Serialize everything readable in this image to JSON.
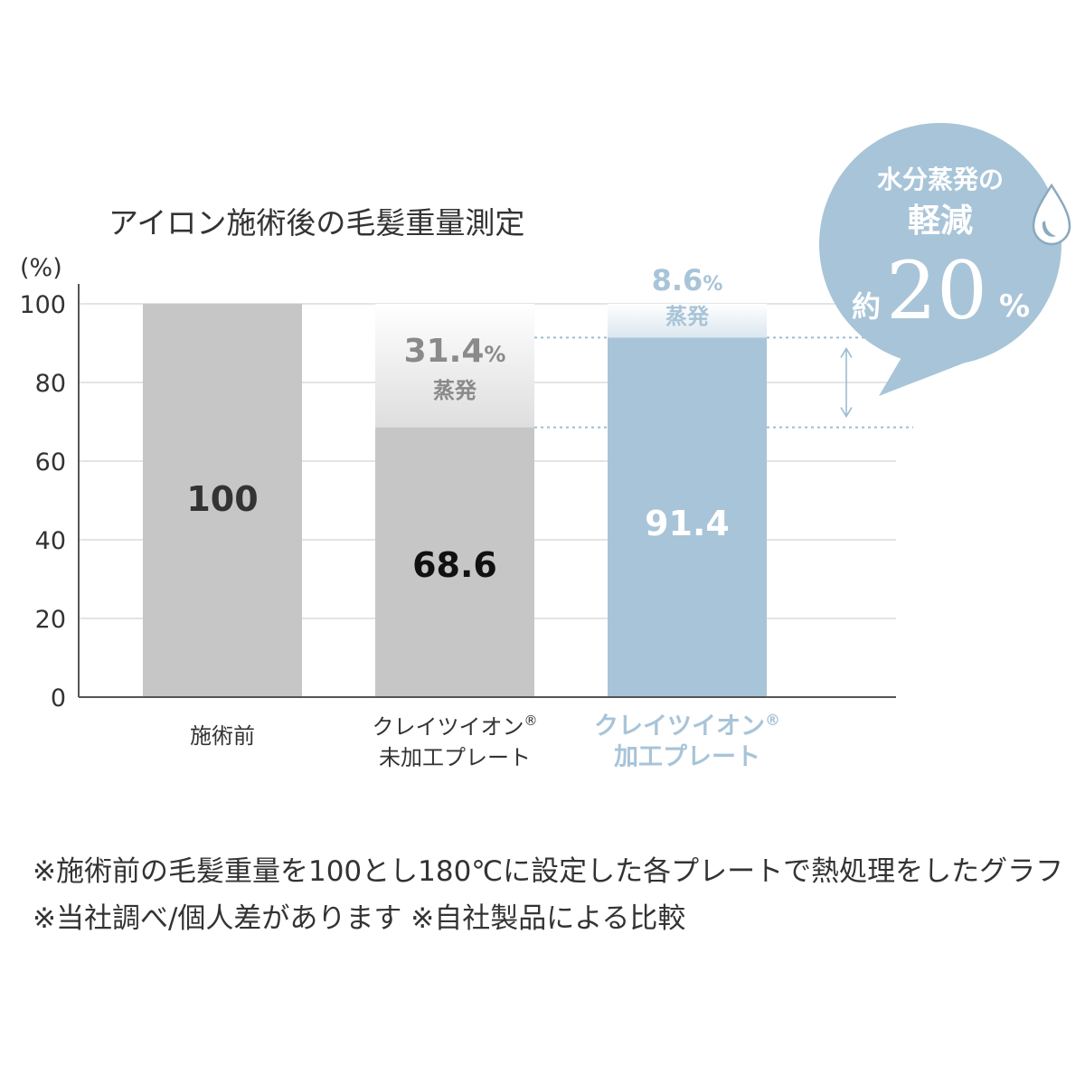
{
  "chart_data": {
    "type": "bar",
    "title": "アイロン施術後の毛髪重量測定",
    "ylabel": "(%)",
    "ylim": [
      0,
      100
    ],
    "yticks": [
      "0",
      "20",
      "40",
      "60",
      "80",
      "100"
    ],
    "grid": true,
    "categories": [
      {
        "lines": [
          "施術前"
        ],
        "sup": "",
        "highlight": false
      },
      {
        "lines": [
          "クレイツイオン",
          "未加工プレート"
        ],
        "sup": "®",
        "highlight": false
      },
      {
        "lines": [
          "クレイツイオン",
          "加工プレート"
        ],
        "sup": "®",
        "highlight": true
      }
    ],
    "series": [
      {
        "name": "",
        "values": [
          100,
          68.6,
          91.4
        ]
      }
    ],
    "value_labels": [
      "100",
      "68.6",
      "91.4"
    ],
    "evaporation": [
      null,
      {
        "number": "31.4",
        "unit": "%",
        "label": "蒸発",
        "value": 31.4
      },
      {
        "number": "8.6",
        "unit": "%",
        "label": "蒸発",
        "value": 8.6
      }
    ],
    "colors": {
      "bar_gray": "#c6c6c6",
      "bar_blue": "#a8c4d8",
      "evap_gray_top": "#ffffff",
      "evap_gray_bottom": "#dedede",
      "evap_blue_top": "#ffffff",
      "evap_blue_bottom": "#dae6ee",
      "bubble": "#a8c4d8",
      "highlight_text": "#a8c4d8",
      "dotted": "#9dbdd0"
    },
    "callout": {
      "line1": "水分蒸発の",
      "line2": "軽減",
      "prefix": "約",
      "number": "20",
      "unit": "%",
      "icon": "water-drop-icon"
    }
  },
  "notes": [
    "※施術前の毛髪重量を100とし180℃に設定した各プレートで熱処理をしたグラフ",
    "※当社調べ/個人差があります ※自社製品による比較"
  ]
}
